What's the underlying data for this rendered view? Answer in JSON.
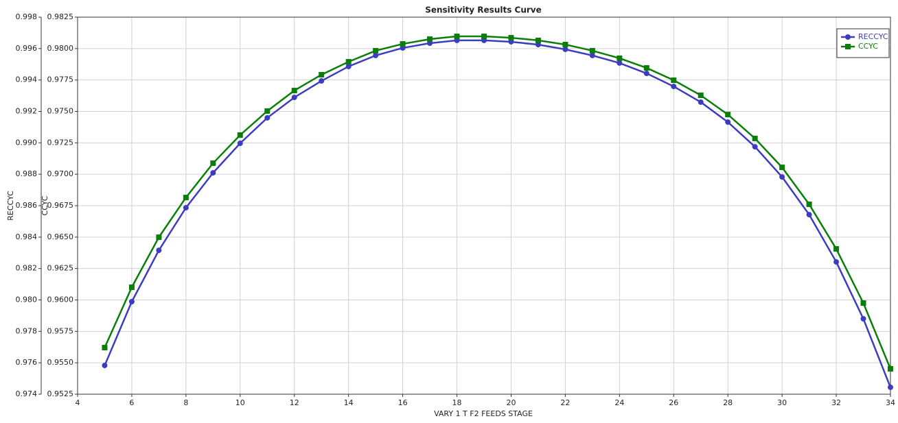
{
  "chart_data": {
    "type": "line",
    "title": "Sensitivity Results Curve",
    "x_label": "VARY   1 T F2 FEEDS STAGE",
    "y_label": "RECCYC",
    "y2_label": "CCYC",
    "x": [
      5,
      6,
      7,
      8,
      9,
      10,
      11,
      12,
      13,
      14,
      15,
      16,
      17,
      18,
      19,
      20,
      21,
      22,
      23,
      24,
      25,
      26,
      27,
      28,
      29,
      30,
      31,
      32,
      33,
      34
    ],
    "series": [
      {
        "name": "RECCYC",
        "color": "#3c3cc0",
        "marker": "circle",
        "axis": "y",
        "values": [
          0.97583,
          0.97989,
          0.98316,
          0.98587,
          0.98809,
          0.98997,
          0.99159,
          0.99289,
          0.99394,
          0.99486,
          0.99556,
          0.99604,
          0.99634,
          0.99652,
          0.99652,
          0.99643,
          0.99625,
          0.99595,
          0.99556,
          0.99508,
          0.99442,
          0.99359,
          0.99259,
          0.99132,
          0.98975,
          0.98783,
          0.98543,
          0.98242,
          0.9788,
          0.97444
        ]
      },
      {
        "name": "CCYC",
        "color": "#0a7d0a",
        "marker": "square",
        "axis": "y2",
        "values": [
          0.95621,
          0.96101,
          0.96499,
          0.96815,
          0.97088,
          0.97312,
          0.97503,
          0.97666,
          0.97792,
          0.97895,
          0.97983,
          0.98037,
          0.98075,
          0.98097,
          0.98097,
          0.98086,
          0.98065,
          0.98032,
          0.97983,
          0.97923,
          0.97846,
          0.97748,
          0.97628,
          0.97475,
          0.97285,
          0.97055,
          0.96761,
          0.96406,
          0.95975,
          0.95452
        ]
      }
    ],
    "xlim": [
      4,
      34
    ],
    "xticks": [
      4,
      6,
      8,
      10,
      12,
      14,
      16,
      18,
      20,
      22,
      24,
      26,
      28,
      30,
      32,
      34
    ],
    "ylim": [
      0.974,
      0.998
    ],
    "yticks": [
      0.974,
      0.976,
      0.978,
      {
        "value": 0.98,
        "label": "0.980"
      },
      0.982,
      0.984,
      0.986,
      0.988,
      {
        "value": 0.99,
        "label": "0.990"
      },
      0.992,
      0.994,
      0.996,
      0.998
    ],
    "y2lim": [
      0.9525,
      0.9825
    ],
    "y2ticks": [
      0.9525,
      {
        "value": 0.955,
        "label": "0.9550"
      },
      0.9575,
      {
        "value": 0.96,
        "label": "0.9600"
      },
      0.9625,
      {
        "value": 0.965,
        "label": "0.9650"
      },
      0.9675,
      {
        "value": 0.97,
        "label": "0.9700"
      },
      0.9725,
      {
        "value": 0.975,
        "label": "0.9750"
      },
      0.9775,
      {
        "value": 0.98,
        "label": "0.9800"
      },
      0.9825
    ],
    "grid": true,
    "legend": "upper right"
  }
}
